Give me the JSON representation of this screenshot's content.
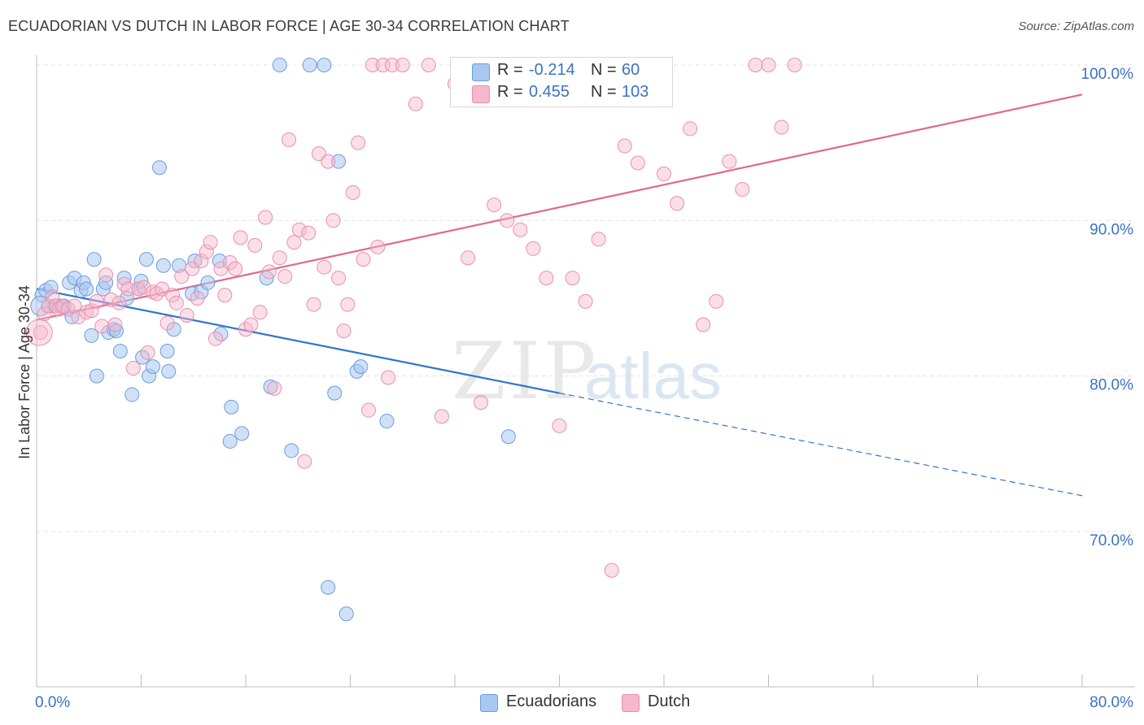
{
  "header": {
    "title": "ECUADORIAN VS DUTCH IN LABOR FORCE | AGE 30-34 CORRELATION CHART",
    "source": "Source: ZipAtlas.com"
  },
  "legend_box": {
    "rows": [
      {
        "r_label": "R =",
        "r_value": "-0.214",
        "n_label": "N =",
        "n_value": "60"
      },
      {
        "r_label": "R =",
        "r_value": "0.455",
        "n_label": "N =",
        "n_value": "103"
      }
    ]
  },
  "bottom_legend": {
    "ecuadorians": "Ecuadorians",
    "dutch": "Dutch"
  },
  "watermark": {
    "zip": "ZIP",
    "atlas": "atlas"
  },
  "colors": {
    "ecuadorians_fill": "#a9c8f0",
    "ecuadorians_stroke": "#6b9ddf",
    "ecuadorians_line": "#2f74d0",
    "dutch_fill": "#f6b8cc",
    "dutch_stroke": "#ea8fad",
    "dutch_line": "#e06890",
    "axis_label": "#3a73c4",
    "grid": "#e4e4e4"
  },
  "chart_data": {
    "type": "scatter",
    "title": "ECUADORIAN VS DUTCH IN LABOR FORCE | AGE 30-34 CORRELATION CHART",
    "xlabel": "",
    "ylabel": "In Labor Force | Age 30-34",
    "xlim": [
      0,
      80
    ],
    "ylim": [
      61,
      102
    ],
    "x_tick_labels": [
      "0.0%",
      "80.0%"
    ],
    "y_ticks": [
      70,
      80,
      90,
      100
    ],
    "y_tick_labels": [
      "70.0%",
      "80.0%",
      "90.0%",
      "100.0%"
    ],
    "grid": true,
    "legend_position": "top-center",
    "series": [
      {
        "name": "Ecuadorians",
        "R": -0.214,
        "N": 60,
        "trend": {
          "x_solid": [
            0,
            40
          ],
          "y_solid": [
            85.6,
            78.9
          ],
          "x_dashed_end": 80,
          "y_dashed_end": 72.3
        },
        "points": [
          [
            0.4,
            85.2
          ],
          [
            0.7,
            85.5
          ],
          [
            0.9,
            84.5
          ],
          [
            1.1,
            85.7
          ],
          [
            1.4,
            84.5
          ],
          [
            1.8,
            84.5
          ],
          [
            2.1,
            84.5
          ],
          [
            2.5,
            86.0
          ],
          [
            2.7,
            83.8
          ],
          [
            2.9,
            86.3
          ],
          [
            3.4,
            85.5
          ],
          [
            3.6,
            86.0
          ],
          [
            3.8,
            85.6
          ],
          [
            4.2,
            82.6
          ],
          [
            4.4,
            87.5
          ],
          [
            4.6,
            80.0
          ],
          [
            5.1,
            85.6
          ],
          [
            5.3,
            86.0
          ],
          [
            5.5,
            82.8
          ],
          [
            5.9,
            83.0
          ],
          [
            6.1,
            82.9
          ],
          [
            6.4,
            81.6
          ],
          [
            6.7,
            86.3
          ],
          [
            6.9,
            85.0
          ],
          [
            7.3,
            78.8
          ],
          [
            7.8,
            85.6
          ],
          [
            8.0,
            86.1
          ],
          [
            8.1,
            81.2
          ],
          [
            8.4,
            87.5
          ],
          [
            8.6,
            80.0
          ],
          [
            8.9,
            80.6
          ],
          [
            9.4,
            93.4
          ],
          [
            9.7,
            87.1
          ],
          [
            10.0,
            81.6
          ],
          [
            10.1,
            80.3
          ],
          [
            10.5,
            83.0
          ],
          [
            10.9,
            87.1
          ],
          [
            11.9,
            85.3
          ],
          [
            12.1,
            87.4
          ],
          [
            12.6,
            85.4
          ],
          [
            13.1,
            86.0
          ],
          [
            14.0,
            87.4
          ],
          [
            14.1,
            82.7
          ],
          [
            14.9,
            78.0
          ],
          [
            14.8,
            75.8
          ],
          [
            15.7,
            76.3
          ],
          [
            17.6,
            86.3
          ],
          [
            17.9,
            79.3
          ],
          [
            18.6,
            100.0
          ],
          [
            19.5,
            75.2
          ],
          [
            20.9,
            100.0
          ],
          [
            22.0,
            100.0
          ],
          [
            22.3,
            66.4
          ],
          [
            22.8,
            78.9
          ],
          [
            23.1,
            93.8
          ],
          [
            23.7,
            64.7
          ],
          [
            24.5,
            80.3
          ],
          [
            24.8,
            80.6
          ],
          [
            26.8,
            77.1
          ],
          [
            36.1,
            76.1
          ]
        ]
      },
      {
        "name": "Dutch",
        "R": 0.455,
        "N": 103,
        "trend": {
          "x_solid": [
            0,
            80
          ],
          "y_solid": [
            83.6,
            98.1
          ]
        },
        "points": [
          [
            0.3,
            82.8
          ],
          [
            0.6,
            84.0
          ],
          [
            0.9,
            84.5
          ],
          [
            1.2,
            85.1
          ],
          [
            1.5,
            84.5
          ],
          [
            1.7,
            84.3
          ],
          [
            2.0,
            84.5
          ],
          [
            2.4,
            84.3
          ],
          [
            2.9,
            84.5
          ],
          [
            3.2,
            83.8
          ],
          [
            3.8,
            84.1
          ],
          [
            4.2,
            84.2
          ],
          [
            4.6,
            84.8
          ],
          [
            5.0,
            83.2
          ],
          [
            5.3,
            86.5
          ],
          [
            5.7,
            84.9
          ],
          [
            6.0,
            83.3
          ],
          [
            6.3,
            84.7
          ],
          [
            6.7,
            85.9
          ],
          [
            7.0,
            85.6
          ],
          [
            7.4,
            80.5
          ],
          [
            7.8,
            85.6
          ],
          [
            8.2,
            85.7
          ],
          [
            8.5,
            81.5
          ],
          [
            8.9,
            85.4
          ],
          [
            9.2,
            85.3
          ],
          [
            9.6,
            85.6
          ],
          [
            10.0,
            83.4
          ],
          [
            10.4,
            85.2
          ],
          [
            10.7,
            84.7
          ],
          [
            11.1,
            86.4
          ],
          [
            11.5,
            83.9
          ],
          [
            11.9,
            86.9
          ],
          [
            12.3,
            85.0
          ],
          [
            12.6,
            87.4
          ],
          [
            13.0,
            88.0
          ],
          [
            13.3,
            88.6
          ],
          [
            13.7,
            82.4
          ],
          [
            14.1,
            86.9
          ],
          [
            14.4,
            85.2
          ],
          [
            14.8,
            87.3
          ],
          [
            15.2,
            86.9
          ],
          [
            15.6,
            88.9
          ],
          [
            16.0,
            83.0
          ],
          [
            16.4,
            83.3
          ],
          [
            16.7,
            88.4
          ],
          [
            17.1,
            84.1
          ],
          [
            17.5,
            90.2
          ],
          [
            17.8,
            86.7
          ],
          [
            18.2,
            79.2
          ],
          [
            18.6,
            87.6
          ],
          [
            19.0,
            86.4
          ],
          [
            19.3,
            95.2
          ],
          [
            19.7,
            88.6
          ],
          [
            20.1,
            89.4
          ],
          [
            20.5,
            74.5
          ],
          [
            20.8,
            89.2
          ],
          [
            21.2,
            84.6
          ],
          [
            21.6,
            94.3
          ],
          [
            22.0,
            87.0
          ],
          [
            22.3,
            93.8
          ],
          [
            22.7,
            90.0
          ],
          [
            23.1,
            86.3
          ],
          [
            23.5,
            82.9
          ],
          [
            23.8,
            84.6
          ],
          [
            24.2,
            91.8
          ],
          [
            24.6,
            95.0
          ],
          [
            25.0,
            87.5
          ],
          [
            25.4,
            77.8
          ],
          [
            25.7,
            100.0
          ],
          [
            26.1,
            88.3
          ],
          [
            26.5,
            100.0
          ],
          [
            26.9,
            79.9
          ],
          [
            27.2,
            100.0
          ],
          [
            28.0,
            100.0
          ],
          [
            29.0,
            97.5
          ],
          [
            30.0,
            100.0
          ],
          [
            31.0,
            77.4
          ],
          [
            32.0,
            98.8
          ],
          [
            33.0,
            87.6
          ],
          [
            34.0,
            78.3
          ],
          [
            35.0,
            91.0
          ],
          [
            36.0,
            90.0
          ],
          [
            37.0,
            89.4
          ],
          [
            38.0,
            88.2
          ],
          [
            39.0,
            86.3
          ],
          [
            40.0,
            76.8
          ],
          [
            41.0,
            86.3
          ],
          [
            42.0,
            84.8
          ],
          [
            43.0,
            88.8
          ],
          [
            44.0,
            67.5
          ],
          [
            45.0,
            94.8
          ],
          [
            46.0,
            93.7
          ],
          [
            47.0,
            98.4
          ],
          [
            48.0,
            93.0
          ],
          [
            49.0,
            91.1
          ],
          [
            50.0,
            95.9
          ],
          [
            51.0,
            83.3
          ],
          [
            52.0,
            84.8
          ],
          [
            53.0,
            93.8
          ],
          [
            54.0,
            92.0
          ],
          [
            55.0,
            100.0
          ],
          [
            56.0,
            100.0
          ],
          [
            57.0,
            96.0
          ],
          [
            58.0,
            100.0
          ]
        ]
      }
    ]
  }
}
